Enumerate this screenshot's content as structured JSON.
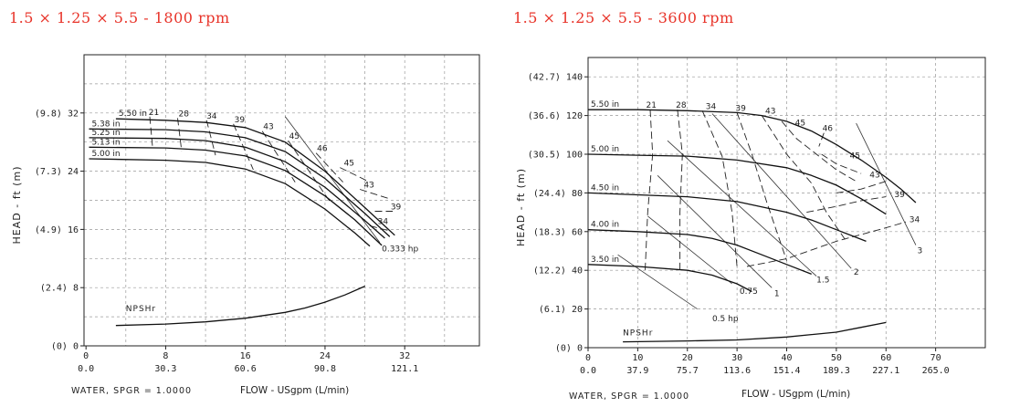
{
  "chart_data": [
    {
      "type": "line",
      "title": "1.5 × 1.25 × 5.5 - 1800 rpm",
      "ylabel": "HEAD - ft (m)",
      "xlabel": "FLOW - USgpm (L/min)",
      "footnote": "WATER, SPGR = 1.0000",
      "xlim": [
        -0.2,
        39.5
      ],
      "ylim": [
        0,
        40
      ],
      "x_ticks": [
        {
          "v": 0,
          "label": "0",
          "label2": "0.0"
        },
        {
          "v": 8,
          "label": "8",
          "label2": "30.3"
        },
        {
          "v": 16,
          "label": "16",
          "label2": "60.6"
        },
        {
          "v": 24,
          "label": "24",
          "label2": "90.8"
        },
        {
          "v": 32,
          "label": "32",
          "label2": "121.1"
        }
      ],
      "y_ticks": [
        {
          "v": 0,
          "label": "(0) 0"
        },
        {
          "v": 8,
          "label": "(2.4) 8"
        },
        {
          "v": 16,
          "label": "(4.9) 16"
        },
        {
          "v": 24,
          "label": "(7.3) 24"
        },
        {
          "v": 32,
          "label": "(9.8) 32"
        }
      ],
      "grid_x": [
        4,
        8,
        12,
        16,
        20,
        24,
        28,
        32,
        36
      ],
      "grid_y": [
        4,
        8,
        12,
        16,
        20,
        24,
        28,
        32,
        36
      ],
      "series": [
        {
          "name": "5.50 in",
          "x": [
            3,
            8,
            12,
            16,
            20,
            24,
            28,
            31
          ],
          "y": [
            31.2,
            31,
            30.7,
            30,
            28,
            24,
            19,
            15.2
          ]
        },
        {
          "name": "5.38 in",
          "x": [
            0.3,
            8,
            12,
            16,
            20,
            24,
            28,
            30.5
          ],
          "y": [
            29.8,
            29.7,
            29.4,
            28.6,
            26.7,
            23,
            18.2,
            15
          ]
        },
        {
          "name": "5.25 in",
          "x": [
            0.3,
            8,
            12,
            16,
            20,
            24,
            28,
            30
          ],
          "y": [
            28.6,
            28.5,
            28.2,
            27.3,
            25.3,
            21.8,
            17.2,
            14.8
          ]
        },
        {
          "name": "5.13 in",
          "x": [
            0.3,
            8,
            12,
            16,
            20,
            24,
            27,
            29.7
          ],
          "y": [
            27.3,
            27.2,
            26.9,
            26.1,
            24.1,
            20.6,
            17.3,
            13.8
          ]
        },
        {
          "name": "5.00 in",
          "x": [
            0.3,
            8,
            12,
            16,
            20,
            24,
            27,
            28.5
          ],
          "y": [
            25.7,
            25.5,
            25.2,
            24.3,
            22.3,
            18.8,
            15.5,
            13.7
          ]
        },
        {
          "name": "NPSHr",
          "x": [
            3,
            8,
            12,
            16,
            20,
            22,
            24,
            26,
            28
          ],
          "y": [
            2.8,
            3,
            3.3,
            3.8,
            4.6,
            5.2,
            6,
            7,
            8.2
          ],
          "label_at": [
            4,
            4
          ]
        }
      ],
      "efficiency_lines": [
        {
          "label": "21",
          "x": [
            6.4,
            6.7
          ],
          "y": [
            31.5,
            27
          ],
          "lx": 6.2,
          "ly": 31.5
        },
        {
          "label": "28",
          "x": [
            9.2,
            9.6
          ],
          "y": [
            31.3,
            26.8
          ],
          "lx": 9.2,
          "ly": 31.3
        },
        {
          "label": "34",
          "x": [
            12.1,
            13
          ],
          "y": [
            31,
            26.2
          ],
          "lx": 12,
          "ly": 31
        },
        {
          "label": "39",
          "x": [
            14.8,
            16.8
          ],
          "y": [
            30.5,
            24.2
          ],
          "lx": 14.8,
          "ly": 30.5
        },
        {
          "label": "43",
          "x": [
            17.7,
            21
          ],
          "y": [
            29.5,
            22.5
          ],
          "lx": 17.7,
          "ly": 29.5
        },
        {
          "label": "45",
          "x": [
            20.3,
            24.5
          ],
          "y": [
            28.2,
            19.8
          ],
          "lx": 20.3,
          "ly": 28.2
        },
        {
          "label": "46",
          "x": [
            23.1,
            25.8
          ],
          "y": [
            26.5,
            22.5
          ],
          "lx": 23.1,
          "ly": 26.5
        },
        {
          "label": "45",
          "x": [
            25.5,
            28.5
          ],
          "y": [
            24.5,
            22.5
          ],
          "lx": 25.8,
          "ly": 24.5
        },
        {
          "label": "43",
          "x": [
            27.5,
            30.5
          ],
          "y": [
            21.5,
            20.2
          ],
          "lx": 27.8,
          "ly": 21.5
        },
        {
          "label": "39",
          "x": [
            29,
            30.8
          ],
          "y": [
            18.5,
            18.5
          ],
          "lx": 30.5,
          "ly": 18.5
        },
        {
          "label": "34",
          "x": [
            28.5,
            30.5
          ],
          "y": [
            16.5,
            15.8
          ],
          "lx": 29.2,
          "ly": 16.5
        }
      ],
      "power_lines": [
        {
          "label": "0.333 hp",
          "x": [
            20,
            29.5
          ],
          "y": [
            31.5,
            14.2
          ],
          "lx": 29.7,
          "ly": 14.1
        }
      ]
    },
    {
      "type": "line",
      "title": "1.5 × 1.25 × 5.5 - 3600 rpm",
      "ylabel": "HEAD - ft (m)",
      "xlabel": "FLOW - USgpm (L/min)",
      "footnote": "WATER, SPGR = 1.0000",
      "xlim": [
        0,
        80
      ],
      "ylim": [
        0,
        150
      ],
      "x_ticks": [
        {
          "v": 0,
          "label": "0",
          "label2": "0.0"
        },
        {
          "v": 10,
          "label": "10",
          "label2": "37.9"
        },
        {
          "v": 20,
          "label": "20",
          "label2": "75.7"
        },
        {
          "v": 30,
          "label": "30",
          "label2": "113.6"
        },
        {
          "v": 40,
          "label": "40",
          "label2": "151.4"
        },
        {
          "v": 50,
          "label": "50",
          "label2": "189.3"
        },
        {
          "v": 60,
          "label": "60",
          "label2": "227.1"
        },
        {
          "v": 70,
          "label": "70",
          "label2": "265.0"
        }
      ],
      "y_ticks": [
        {
          "v": 0,
          "label": "(0) 0"
        },
        {
          "v": 20,
          "label": "(6.1) 20"
        },
        {
          "v": 40,
          "label": "(12.2) 40"
        },
        {
          "v": 60,
          "label": "(18.3) 60"
        },
        {
          "v": 80,
          "label": "(24.4) 80"
        },
        {
          "v": 100,
          "label": "(30.5) 100"
        },
        {
          "v": 120,
          "label": "(36.6) 120"
        },
        {
          "v": 140,
          "label": "(42.7) 140"
        }
      ],
      "grid_x": [
        10,
        20,
        30,
        40,
        50,
        60,
        70
      ],
      "grid_y": [
        20,
        40,
        60,
        80,
        100,
        120,
        140
      ],
      "series": [
        {
          "name": "5.50 in",
          "x": [
            0,
            10,
            20,
            30,
            35,
            40,
            45,
            50,
            55,
            60,
            63,
            66
          ],
          "y": [
            123,
            123,
            122.5,
            121.5,
            120,
            117,
            112,
            105,
            97,
            88,
            82,
            75
          ]
        },
        {
          "name": "5.00 in",
          "x": [
            0,
            10,
            20,
            30,
            40,
            45,
            50,
            55,
            60
          ],
          "y": [
            100,
            99.5,
            99,
            97,
            93,
            89,
            84,
            77,
            69
          ]
        },
        {
          "name": "4.50 in",
          "x": [
            0,
            10,
            20,
            30,
            40,
            45,
            50,
            56
          ],
          "y": [
            80,
            79,
            78,
            75.5,
            70,
            66,
            61,
            55
          ]
        },
        {
          "name": "4.00 in",
          "x": [
            0,
            10,
            20,
            25,
            30,
            35,
            40,
            45
          ],
          "y": [
            61,
            60,
            58.5,
            56.5,
            53,
            48,
            43,
            38
          ]
        },
        {
          "name": "3.50 in",
          "x": [
            0,
            10,
            20,
            25,
            30,
            33
          ],
          "y": [
            43,
            42,
            40,
            37.5,
            33,
            29
          ]
        },
        {
          "name": "NPSHr",
          "x": [
            7,
            20,
            30,
            40,
            50,
            55,
            60
          ],
          "y": [
            3,
            3.5,
            4,
            5.5,
            8,
            10.5,
            13
          ],
          "label_at": [
            7,
            3.5
          ]
        }
      ],
      "efficiency_lines": [
        {
          "label": "21",
          "x": [
            12.5,
            13,
            12,
            11.5
          ],
          "y": [
            123,
            100,
            70,
            40
          ],
          "lx": 11.5,
          "ly": 123
        },
        {
          "label": "28",
          "x": [
            18,
            19,
            18.5,
            18.5
          ],
          "y": [
            123,
            100,
            70,
            38
          ],
          "lx": 17.5,
          "ly": 123
        },
        {
          "label": "34",
          "x": [
            23,
            27,
            29,
            30
          ],
          "y": [
            122.5,
            99,
            70,
            42
          ],
          "lx": 23.5,
          "ly": 122.5
        },
        {
          "label": "39",
          "x": [
            30,
            33,
            36,
            40
          ],
          "y": [
            121.5,
            100,
            75,
            45
          ],
          "lx": 29.5,
          "ly": 121.5
        },
        {
          "label": "43",
          "x": [
            35,
            40,
            45,
            48,
            52
          ],
          "y": [
            120,
            100,
            85,
            70,
            55
          ],
          "lx": 35.5,
          "ly": 120
        },
        {
          "label": "45",
          "x": [
            39,
            42,
            46,
            50,
            54
          ],
          "y": [
            117,
            108,
            100,
            92,
            86
          ],
          "lx": 41.5,
          "ly": 114
        },
        {
          "label": "46",
          "x": [
            47.5,
            46.5
          ],
          "y": [
            111,
            104
          ],
          "lx": 47,
          "ly": 111
        },
        {
          "label": "45",
          "x": [
            47,
            50,
            55
          ],
          "y": [
            100,
            95,
            90
          ],
          "lx": 52.5,
          "ly": 97
        },
        {
          "label": "43",
          "x": [
            50,
            55,
            60
          ],
          "y": [
            80,
            82,
            86
          ],
          "lx": 56.5,
          "ly": 87
        },
        {
          "label": "39",
          "x": [
            44,
            50,
            55,
            60
          ],
          "y": [
            70,
            73,
            76,
            78
          ],
          "lx": 61.5,
          "ly": 77
        },
        {
          "label": "34",
          "x": [
            32,
            40,
            50,
            60,
            64
          ],
          "y": [
            42,
            46,
            55,
            62,
            65
          ],
          "lx": 64.5,
          "ly": 64
        }
      ],
      "power_lines": [
        {
          "label": "0.5 hp",
          "x": [
            6,
            22
          ],
          "y": [
            48,
            20
          ],
          "lx": 25,
          "ly": 18
        },
        {
          "label": "0.75",
          "x": [
            12,
            29
          ],
          "y": [
            68,
            33
          ],
          "lx": 30.5,
          "ly": 32
        },
        {
          "label": "1",
          "x": [
            14,
            37
          ],
          "y": [
            89,
            31
          ],
          "lx": 37.5,
          "ly": 31
        },
        {
          "label": "1.5",
          "x": [
            16,
            46
          ],
          "y": [
            107,
            37
          ],
          "lx": 46,
          "ly": 38
        },
        {
          "label": "2",
          "x": [
            25,
            53
          ],
          "y": [
            121,
            41
          ],
          "lx": 53.5,
          "ly": 42
        },
        {
          "label": "3",
          "x": [
            54,
            66
          ],
          "y": [
            116,
            53
          ],
          "lx": 66.3,
          "ly": 53
        }
      ]
    }
  ]
}
